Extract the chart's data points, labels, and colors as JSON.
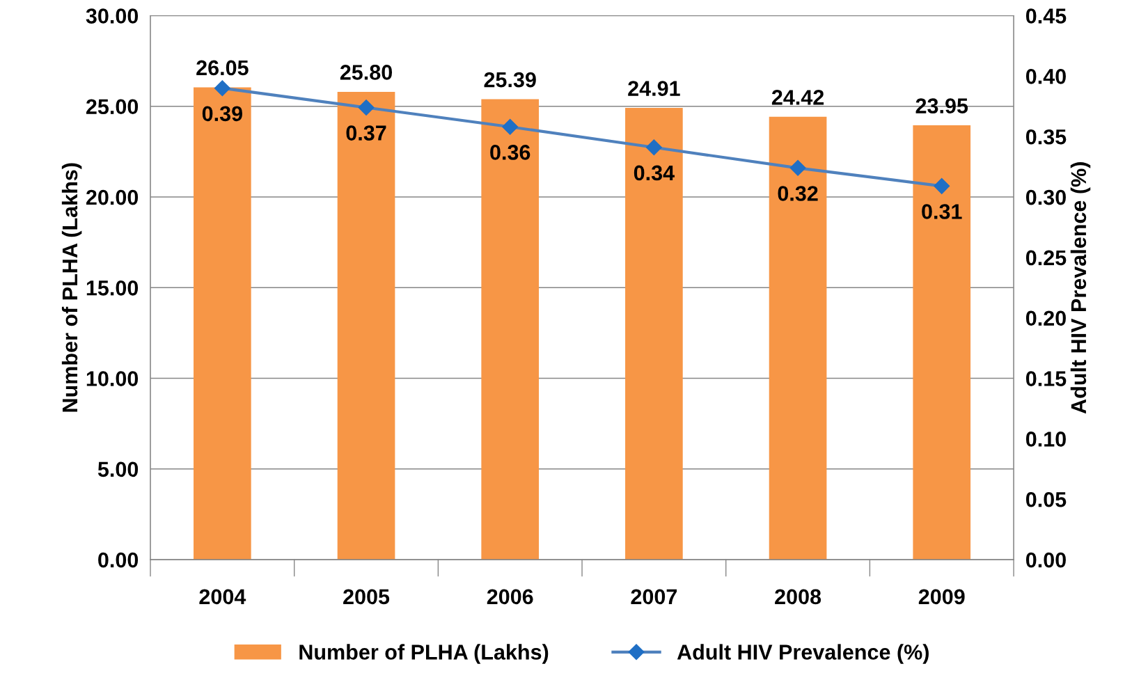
{
  "chart_data": {
    "type": "bar",
    "categories": [
      "2004",
      "2005",
      "2006",
      "2007",
      "2008",
      "2009"
    ],
    "ylabel": "Number of PLHA (Lakhs)",
    "y2label": "Adult HIV Prevalence (%)",
    "series": [
      {
        "name": "Number of PLHA (Lakhs)",
        "color": "#f79646",
        "values": [
          26.05,
          25.8,
          25.39,
          24.91,
          24.42,
          23.95
        ],
        "value_labels": [
          "26.05",
          "25.80",
          "25.39",
          "24.91",
          "24.42",
          "23.95"
        ]
      },
      {
        "name": "Adult HIV Prevalence (%)",
        "type": "line",
        "axis": "y2",
        "color": "#4f81bd",
        "marker": "diamond",
        "values": [
          0.39,
          0.374,
          0.358,
          0.341,
          0.324,
          0.309
        ],
        "value_labels": [
          "0.39",
          "0.37",
          "0.36",
          "0.34",
          "0.32",
          "0.31"
        ]
      }
    ],
    "ylim": [
      0,
      30
    ],
    "yticks": [
      {
        "value": 0,
        "label": "0.00"
      },
      {
        "value": 5,
        "label": "5.00"
      },
      {
        "value": 10,
        "label": "10.00"
      },
      {
        "value": 15,
        "label": "15.00"
      },
      {
        "value": 20,
        "label": "20.00"
      },
      {
        "value": 25,
        "label": "25.00"
      },
      {
        "value": 30,
        "label": "30.00"
      }
    ],
    "y2lim": [
      0,
      0.45
    ],
    "y2ticks": [
      {
        "value": 0,
        "label": "0.00"
      },
      {
        "value": 0.05,
        "label": "0.05"
      },
      {
        "value": 0.1,
        "label": "0.10"
      },
      {
        "value": 0.15,
        "label": "0.15"
      },
      {
        "value": 0.2,
        "label": "0.20"
      },
      {
        "value": 0.25,
        "label": "0.25"
      },
      {
        "value": 0.3,
        "label": "0.30"
      },
      {
        "value": 0.35,
        "label": "0.35"
      },
      {
        "value": 0.4,
        "label": "0.40"
      },
      {
        "value": 0.45,
        "label": "0.45"
      }
    ],
    "grid": "y",
    "legend": "bottom"
  }
}
